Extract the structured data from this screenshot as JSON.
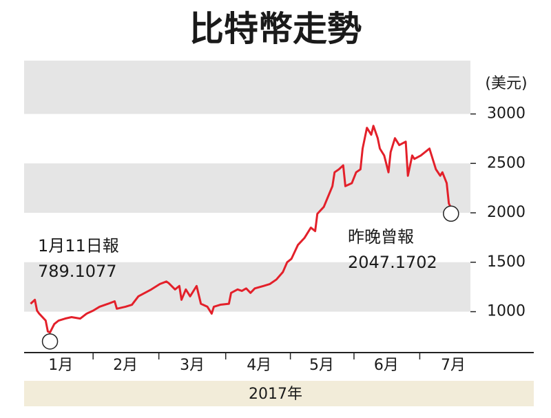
{
  "chart_data": {
    "type": "line",
    "title": "比特幣走勢",
    "y_label": "(美元)",
    "x_label": "2017年",
    "x": [
      2,
      4,
      5,
      6,
      9,
      10,
      11,
      13,
      15,
      18,
      21,
      25,
      28,
      31,
      34,
      38,
      41,
      42,
      46,
      49,
      52,
      55,
      58,
      62,
      65,
      66,
      69,
      71,
      72,
      74,
      76,
      79,
      81,
      84,
      86,
      87,
      90,
      94,
      95,
      98,
      100,
      102,
      104,
      106,
      110,
      113,
      116,
      119,
      121,
      123,
      126,
      129,
      132,
      134,
      135,
      138,
      140,
      142,
      143,
      145,
      147,
      148,
      151,
      153,
      155,
      156,
      158,
      160,
      161,
      163,
      164,
      166,
      168,
      169,
      171,
      173,
      176,
      177,
      179,
      180,
      183,
      185,
      187,
      188,
      190,
      192,
      193,
      195,
      196,
      197
    ],
    "series": [
      {
        "name": "比特幣",
        "color": "#e3202a",
        "values": [
          1080,
          1120,
          1010,
          980,
          910,
          800,
          789.1077,
          875,
          910,
          930,
          945,
          930,
          980,
          1010,
          1050,
          1080,
          1105,
          1030,
          1050,
          1070,
          1155,
          1190,
          1225,
          1280,
          1305,
          1290,
          1225,
          1260,
          1120,
          1225,
          1155,
          1260,
          1080,
          1050,
          980,
          1050,
          1070,
          1080,
          1190,
          1225,
          1210,
          1235,
          1190,
          1235,
          1260,
          1280,
          1325,
          1400,
          1500,
          1535,
          1675,
          1745,
          1850,
          1815,
          1990,
          2060,
          2165,
          2270,
          2410,
          2440,
          2480,
          2270,
          2300,
          2410,
          2440,
          2650,
          2860,
          2790,
          2880,
          2755,
          2650,
          2580,
          2410,
          2615,
          2755,
          2685,
          2720,
          2375,
          2580,
          2545,
          2580,
          2615,
          2650,
          2580,
          2440,
          2375,
          2410,
          2300,
          2095,
          2047.1702
        ]
      }
    ],
    "xlim": [
      -1,
      206
    ],
    "xticks": [
      {
        "value": 16,
        "label": "1月"
      },
      {
        "value": 46,
        "label": "2月"
      },
      {
        "value": 77,
        "label": "3月"
      },
      {
        "value": 108,
        "label": "4月"
      },
      {
        "value": 137,
        "label": "5月"
      },
      {
        "value": 167,
        "label": "6月"
      },
      {
        "value": 198,
        "label": "7月"
      }
    ],
    "ylim": [
      600,
      3540
    ],
    "yticks": [
      1000,
      1500,
      2000,
      2500,
      3000
    ],
    "annotations": [
      {
        "label": "1月11日報",
        "x": 11,
        "y": 789.1077
      },
      {
        "label": "昨晚曾報",
        "x": 197,
        "y": 2047.1702
      }
    ]
  }
}
